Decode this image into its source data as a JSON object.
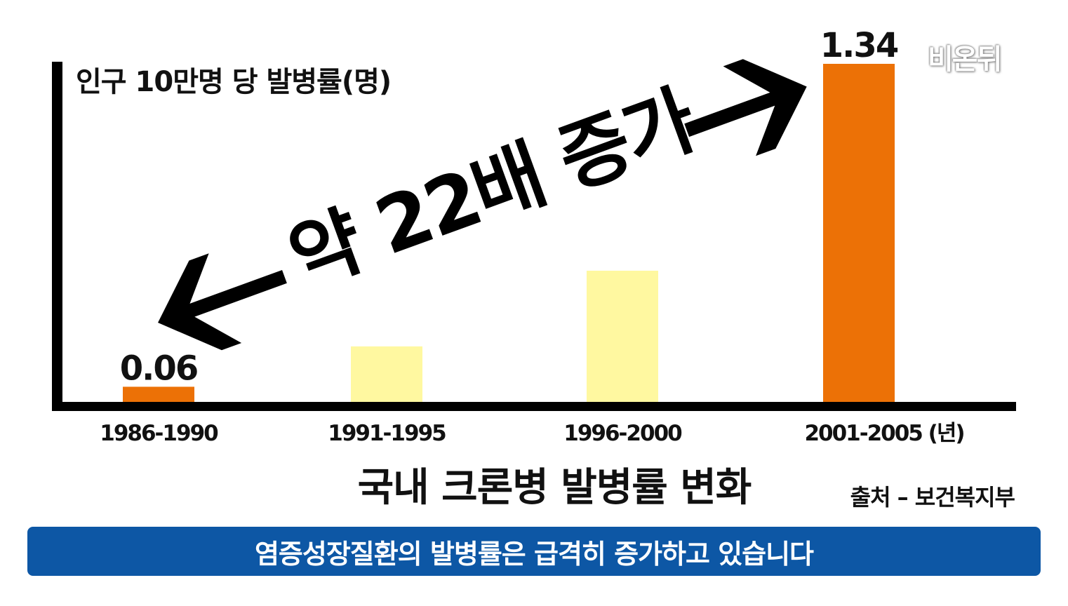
{
  "chart_data": {
    "type": "bar",
    "categories": [
      "1986-1990",
      "1991-1995",
      "1996-2000",
      "2001-2005 (년)"
    ],
    "values": [
      0.06,
      0.22,
      0.52,
      1.34
    ],
    "value_labels": [
      "0.06",
      "",
      "",
      "1.34"
    ],
    "ylabel": "인구 10만명 당 발병률(명)",
    "ylim": [
      0,
      1.34
    ],
    "title": "국내 크론병 발병률 변화",
    "annotation": "약 22배 증가",
    "source": "출처 – 보건복지부",
    "grid": false,
    "colors": {
      "highlight": "#ec7106",
      "muted": "#fff8a0",
      "axis": "#000000"
    },
    "highlighted": [
      true,
      false,
      false,
      true
    ]
  },
  "banner": {
    "text": "염증성장질환의 발병률은 급격히 증가하고 있습니다",
    "color": "#0d57a5"
  },
  "watermark": {
    "text": "비온뒤"
  }
}
